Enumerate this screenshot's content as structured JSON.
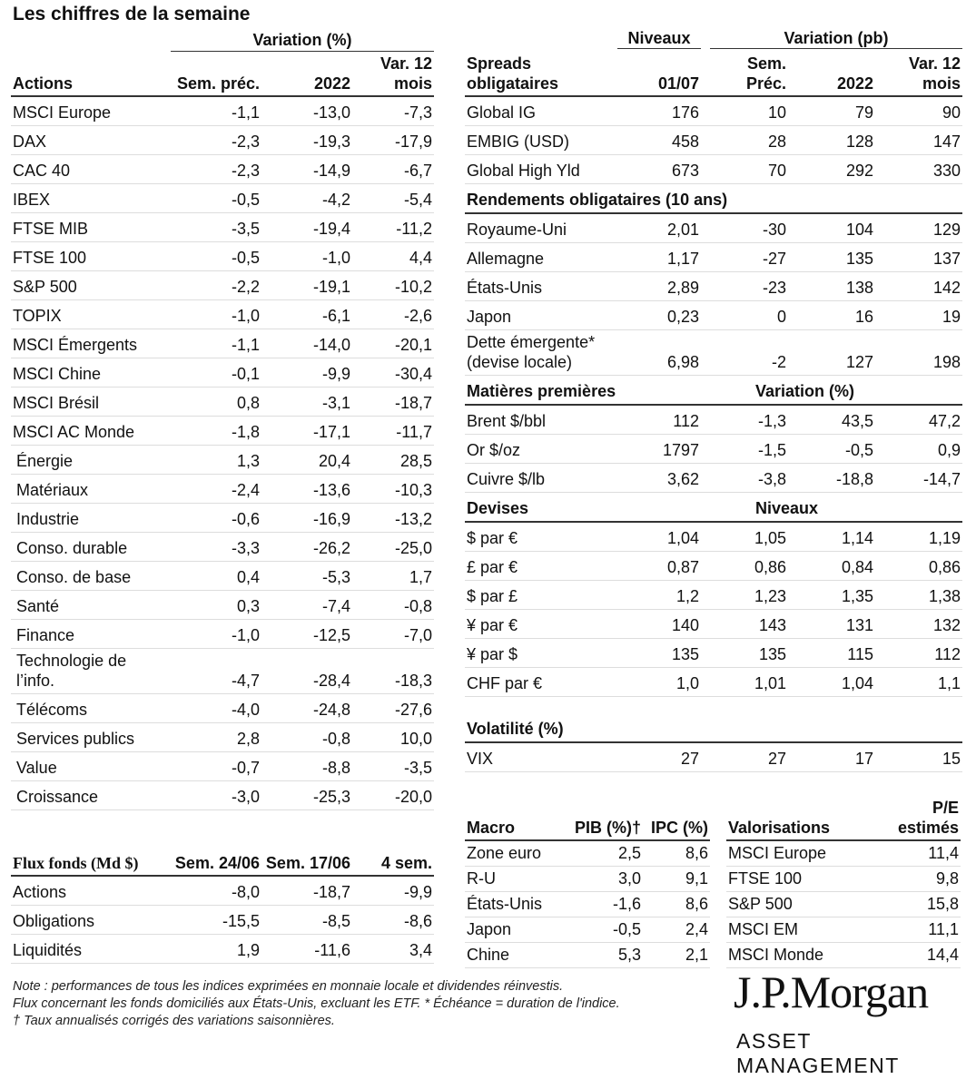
{
  "title": "Les chiffres de la semaine",
  "equities": {
    "group_header": "Variation (%)",
    "col_name": "Actions",
    "col_week": "Sem. préc.",
    "col_ytd": "2022",
    "col_12m": "Var. 12 mois",
    "rows": [
      {
        "name": "MSCI Europe",
        "week": "-1,1",
        "ytd": "-13,0",
        "m12": "-7,3"
      },
      {
        "name": "DAX",
        "week": "-2,3",
        "ytd": "-19,3",
        "m12": "-17,9"
      },
      {
        "name": "CAC 40",
        "week": "-2,3",
        "ytd": "-14,9",
        "m12": "-6,7"
      },
      {
        "name": "IBEX",
        "week": "-0,5",
        "ytd": "-4,2",
        "m12": "-5,4"
      },
      {
        "name": "FTSE MIB",
        "week": "-3,5",
        "ytd": "-19,4",
        "m12": "-11,2"
      },
      {
        "name": "FTSE 100",
        "week": "-0,5",
        "ytd": "-1,0",
        "m12": "4,4"
      },
      {
        "name": "S&P 500",
        "week": "-2,2",
        "ytd": "-19,1",
        "m12": "-10,2"
      },
      {
        "name": "TOPIX",
        "week": "-1,0",
        "ytd": "-6,1",
        "m12": "-2,6"
      },
      {
        "name": "MSCI Émergents",
        "week": "-1,1",
        "ytd": "-14,0",
        "m12": "-20,1"
      },
      {
        "name": "MSCI Chine",
        "week": "-0,1",
        "ytd": "-9,9",
        "m12": "-30,4"
      },
      {
        "name": "MSCI Brésil",
        "week": "0,8",
        "ytd": "-3,1",
        "m12": "-18,7"
      },
      {
        "name": "MSCI AC Monde",
        "week": "-1,8",
        "ytd": "-17,1",
        "m12": "-11,7"
      },
      {
        "name": "Énergie",
        "week": "1,3",
        "ytd": "20,4",
        "m12": "28,5"
      },
      {
        "name": "Matériaux",
        "week": "-2,4",
        "ytd": "-13,6",
        "m12": "-10,3"
      },
      {
        "name": "Industrie",
        "week": "-0,6",
        "ytd": "-16,9",
        "m12": "-13,2"
      },
      {
        "name": "Conso. durable",
        "week": "-3,3",
        "ytd": "-26,2",
        "m12": "-25,0"
      },
      {
        "name": "Conso. de base",
        "week": "0,4",
        "ytd": "-5,3",
        "m12": "1,7"
      },
      {
        "name": "Santé",
        "week": "0,3",
        "ytd": "-7,4",
        "m12": "-0,8"
      },
      {
        "name": "Finance",
        "week": "-1,0",
        "ytd": "-12,5",
        "m12": "-7,0"
      },
      {
        "name": "Technologie de l’info.",
        "week": "-4,7",
        "ytd": "-28,4",
        "m12": "-18,3"
      },
      {
        "name": "Télécoms",
        "week": "-4,0",
        "ytd": "-24,8",
        "m12": "-27,6"
      },
      {
        "name": "Services publics",
        "week": "2,8",
        "ytd": "-0,8",
        "m12": "10,0"
      },
      {
        "name": "Value",
        "week": "-0,7",
        "ytd": "-8,8",
        "m12": "-3,5"
      },
      {
        "name": "Croissance",
        "week": "-3,0",
        "ytd": "-25,3",
        "m12": "-20,0"
      }
    ]
  },
  "flows": {
    "col_name": "Flux fonds (Md $)",
    "col_a": "Sem. 24/06",
    "col_b": "Sem. 17/06",
    "col_c": "4 sem.",
    "rows": [
      {
        "name": "Actions",
        "a": "-8,0",
        "b": "-18,7",
        "c": "-9,9"
      },
      {
        "name": "Obligations",
        "a": "-15,5",
        "b": "-8,5",
        "c": "-8,6"
      },
      {
        "name": "Liquidités",
        "a": "1,9",
        "b": "-11,6",
        "c": "3,4"
      }
    ]
  },
  "bonds": {
    "header_levels": "Niveaux",
    "header_variation": "Variation (pb)",
    "col_name": "Spreads obligataires",
    "col_level": "01/07",
    "col_week": "Sem. Préc.",
    "col_ytd": "2022",
    "col_12m": "Var. 12 mois",
    "spreads": [
      {
        "name": "Global IG",
        "level": "176",
        "week": "10",
        "ytd": "79",
        "m12": "90"
      },
      {
        "name": "EMBIG (USD)",
        "level": "458",
        "week": "28",
        "ytd": "128",
        "m12": "147"
      },
      {
        "name": "Global High Yld",
        "level": "673",
        "week": "70",
        "ytd": "292",
        "m12": "330"
      }
    ],
    "yields_title": "Rendements obligataires (10 ans)",
    "yields": [
      {
        "name": "Royaume-Uni",
        "level": "2,01",
        "week": "-30",
        "ytd": "104",
        "m12": "129"
      },
      {
        "name": "Allemagne",
        "level": "1,17",
        "week": "-27",
        "ytd": "135",
        "m12": "137"
      },
      {
        "name": "États-Unis",
        "level": "2,89",
        "week": "-23",
        "ytd": "138",
        "m12": "142"
      },
      {
        "name": "Japon",
        "level": "0,23",
        "week": "0",
        "ytd": "16",
        "m12": "19"
      },
      {
        "name": "Dette émergente* (devise locale)",
        "level": "6,98",
        "week": "-2",
        "ytd": "127",
        "m12": "198"
      }
    ],
    "commodities_title": "Matières premières",
    "commodities_sub": "Variation (%)",
    "commodities": [
      {
        "name": "Brent $/bbl",
        "level": "112",
        "week": "-1,3",
        "ytd": "43,5",
        "m12": "47,2"
      },
      {
        "name": "Or $/oz",
        "level": "1797",
        "week": "-1,5",
        "ytd": "-0,5",
        "m12": "0,9"
      },
      {
        "name": "Cuivre $/lb",
        "level": "3,62",
        "week": "-3,8",
        "ytd": "-18,8",
        "m12": "-14,7"
      }
    ],
    "fx_title": "Devises",
    "fx_sub": "Niveaux",
    "fx": [
      {
        "name": "$ par €",
        "level": "1,04",
        "week": "1,05",
        "ytd": "1,14",
        "m12": "1,19"
      },
      {
        "name": "£ par €",
        "level": "0,87",
        "week": "0,86",
        "ytd": "0,84",
        "m12": "0,86"
      },
      {
        "name": "$ par £",
        "level": "1,2",
        "week": "1,23",
        "ytd": "1,35",
        "m12": "1,38"
      },
      {
        "name": "¥ par €",
        "level": "140",
        "week": "143",
        "ytd": "131",
        "m12": "132"
      },
      {
        "name": "¥ par $",
        "level": "135",
        "week": "135",
        "ytd": "115",
        "m12": "112"
      },
      {
        "name": "CHF par €",
        "level": "1,0",
        "week": "1,01",
        "ytd": "1,04",
        "m12": "1,1"
      }
    ],
    "vol_title": "Volatilité (%)",
    "vol": [
      {
        "name": "VIX",
        "level": "27",
        "week": "27",
        "ytd": "17",
        "m12": "15"
      }
    ]
  },
  "macro": {
    "col_name": "Macro",
    "col_gdp": "PIB (%)†",
    "col_cpi": "IPC (%)",
    "rows": [
      {
        "name": "Zone euro",
        "gdp": "2,5",
        "cpi": "8,6"
      },
      {
        "name": "R-U",
        "gdp": "3,0",
        "cpi": "9,1"
      },
      {
        "name": "États-Unis",
        "gdp": "-1,6",
        "cpi": "8,6"
      },
      {
        "name": "Japon",
        "gdp": "-0,5",
        "cpi": "2,4"
      },
      {
        "name": "Chine",
        "gdp": "5,3",
        "cpi": "2,1"
      }
    ]
  },
  "valuations": {
    "col_name": "Valorisations",
    "col_pe": "P/E estimés",
    "rows": [
      {
        "name": "MSCI Europe",
        "pe": "11,4"
      },
      {
        "name": "FTSE 100",
        "pe": "9,8"
      },
      {
        "name": "S&P 500",
        "pe": "15,8"
      },
      {
        "name": "MSCI EM",
        "pe": "11,1"
      },
      {
        "name": "MSCI Monde",
        "pe": "14,4"
      }
    ]
  },
  "notes": [
    "Note : performances de tous les indices exprimées en monnaie locale et dividendes réinvestis.",
    "Flux concernant les fonds domiciliés aux États-Unis, excluant les ETF. * Échéance = duration de l'indice.",
    "† Taux annualisés corrigés des variations saisonnières."
  ],
  "logo": {
    "line1": "J.P.Morgan",
    "line2": "ASSET MANAGEMENT"
  }
}
